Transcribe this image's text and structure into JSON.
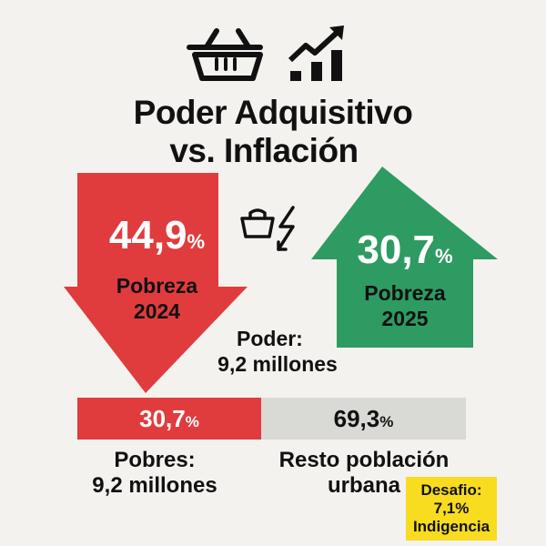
{
  "title": {
    "line1": "Poder Adquisitivo",
    "line2": "vs. Inflación"
  },
  "icons": [
    "basket-icon",
    "growth-chart-icon",
    "bag-lightning-icon"
  ],
  "left_arrow": {
    "value": "44,9",
    "unit": "%",
    "label1": "Pobreza",
    "label2": "2024",
    "color": "#e03c3e"
  },
  "right_arrow": {
    "value": "30,7",
    "unit": "%",
    "label1": "Pobreza",
    "label2": "2025",
    "color": "#2e9b62"
  },
  "poder": {
    "line1": "Poder:",
    "line2": "9,2 millones"
  },
  "bar": {
    "left": {
      "value": "30,7",
      "unit": "%",
      "fraction": 0.307,
      "color": "#e03c3e"
    },
    "right": {
      "value": "69,3",
      "unit": "%",
      "fraction": 0.693,
      "color": "#d9d9d6"
    }
  },
  "captions": {
    "left1": "Pobres:",
    "left2": "9,2 millones",
    "right1": "Resto población",
    "right2": "urbana"
  },
  "challenge": {
    "line1": "Desafio:",
    "line2": "7,1%",
    "line3": "Indigencia",
    "color": "#f7dc1f"
  }
}
